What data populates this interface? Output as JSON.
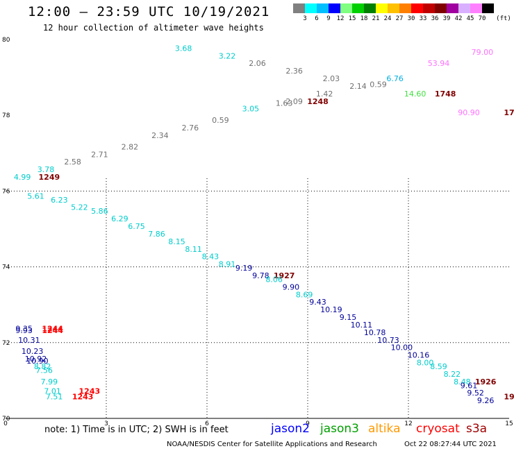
{
  "header": {
    "title": "12:00 – 23:59 UTC 10/19/2021",
    "subtitle": "12 hour collection of altimeter wave heights"
  },
  "colorbar": {
    "unit": "(ft)",
    "labels": [
      "3",
      "6",
      "9",
      "12",
      "15",
      "18",
      "21",
      "24",
      "27",
      "30",
      "33",
      "36",
      "39",
      "42",
      "45",
      "70"
    ],
    "colors": [
      "#808080",
      "#00ffff",
      "#00bfff",
      "#0000ff",
      "#80ff80",
      "#00d000",
      "#008000",
      "#ffff00",
      "#ffc000",
      "#ff8000",
      "#ff0000",
      "#c00000",
      "#800000",
      "#a000a0",
      "#d8b0ff",
      "#ff80ff",
      "#000000"
    ]
  },
  "chart_data": {
    "type": "scatter",
    "x_axis": {
      "ticks": [
        "0",
        "3",
        "6",
        "9",
        "12",
        "15"
      ],
      "range": [
        0,
        15
      ]
    },
    "y_axis": {
      "ticks": [
        "70",
        "72",
        "74",
        "76",
        "78",
        "80"
      ],
      "range": [
        70,
        80
      ]
    },
    "grid": true,
    "points": [
      {
        "x": 5.3,
        "y": 79.7,
        "label": "3.68",
        "color": "#00cccc"
      },
      {
        "x": 6.6,
        "y": 79.5,
        "label": "3.22",
        "color": "#00cccc"
      },
      {
        "x": 7.5,
        "y": 79.3,
        "label": "2.06",
        "color": "#707070"
      },
      {
        "x": 8.6,
        "y": 79.1,
        "label": "2.36",
        "color": "#707070"
      },
      {
        "x": 9.7,
        "y": 78.9,
        "label": "2.03",
        "color": "#707070"
      },
      {
        "x": 10.5,
        "y": 78.7,
        "label": "2.14",
        "color": "#707070"
      },
      {
        "x": 11.1,
        "y": 78.75,
        "label": "0.59",
        "color": "#707070"
      },
      {
        "x": 11.6,
        "y": 78.9,
        "label": "6.76",
        "color": "#00b0e0"
      },
      {
        "x": 12.9,
        "y": 79.3,
        "label": "53.94",
        "color": "#ff70ff"
      },
      {
        "x": 14.2,
        "y": 79.6,
        "label": "79.00",
        "color": "#ff70ff"
      },
      {
        "x": 9.5,
        "y": 78.5,
        "label": "1.42",
        "color": "#707070"
      },
      {
        "x": 8.6,
        "y": 78.3,
        "label": "2.09",
        "color": "#707070"
      },
      {
        "x": 8.3,
        "y": 78.25,
        "label": "1.63",
        "color": "#707070"
      },
      {
        "x": 12.2,
        "y": 78.5,
        "label": "14.60",
        "color": "#40e040"
      },
      {
        "x": 9.3,
        "y": 78.3,
        "label": "1248",
        "color": "#800000",
        "bold": true
      },
      {
        "x": 13.1,
        "y": 78.5,
        "label": "1748",
        "color": "#800000",
        "bold": true
      },
      {
        "x": 13.8,
        "y": 78.0,
        "label": "90.90",
        "color": "#ff70ff"
      },
      {
        "x": 15.0,
        "y": 78.0,
        "label": "17",
        "color": "#800000",
        "bold": true
      },
      {
        "x": 7.3,
        "y": 78.1,
        "label": "3.05",
        "color": "#00cccc"
      },
      {
        "x": 6.4,
        "y": 77.8,
        "label": "0.59",
        "color": "#707070"
      },
      {
        "x": 5.5,
        "y": 77.6,
        "label": "2.76",
        "color": "#707070"
      },
      {
        "x": 4.6,
        "y": 77.4,
        "label": "2.34",
        "color": "#707070"
      },
      {
        "x": 3.7,
        "y": 77.1,
        "label": "2.82",
        "color": "#707070"
      },
      {
        "x": 2.8,
        "y": 76.9,
        "label": "2.71",
        "color": "#707070"
      },
      {
        "x": 2.0,
        "y": 76.7,
        "label": "2.58",
        "color": "#707070"
      },
      {
        "x": 1.2,
        "y": 76.5,
        "label": "3.78",
        "color": "#00cccc"
      },
      {
        "x": 0.5,
        "y": 76.3,
        "label": "4.99",
        "color": "#00cccc"
      },
      {
        "x": 1.3,
        "y": 76.3,
        "label": "1249",
        "color": "#800000",
        "bold": true
      },
      {
        "x": 0.9,
        "y": 75.8,
        "label": "5.61",
        "color": "#00cccc"
      },
      {
        "x": 1.6,
        "y": 75.7,
        "label": "6.23",
        "color": "#00cccc"
      },
      {
        "x": 2.2,
        "y": 75.5,
        "label": "5.22",
        "color": "#00cccc"
      },
      {
        "x": 2.8,
        "y": 75.4,
        "label": "5.86",
        "color": "#00cccc"
      },
      {
        "x": 3.4,
        "y": 75.2,
        "label": "6.29",
        "color": "#00cccc"
      },
      {
        "x": 3.9,
        "y": 75.0,
        "label": "6.75",
        "color": "#00cccc"
      },
      {
        "x": 4.5,
        "y": 74.8,
        "label": "7.86",
        "color": "#00cccc"
      },
      {
        "x": 5.1,
        "y": 74.6,
        "label": "8.15",
        "color": "#00cccc"
      },
      {
        "x": 5.6,
        "y": 74.4,
        "label": "8.11",
        "color": "#00cccc"
      },
      {
        "x": 6.1,
        "y": 74.2,
        "label": "8.43",
        "color": "#00cccc"
      },
      {
        "x": 6.6,
        "y": 74.0,
        "label": "8.91",
        "color": "#00cccc"
      },
      {
        "x": 7.1,
        "y": 73.9,
        "label": "9.19",
        "color": "#000099"
      },
      {
        "x": 7.6,
        "y": 73.7,
        "label": "9.78",
        "color": "#000099"
      },
      {
        "x": 8.3,
        "y": 73.7,
        "label": "1927",
        "color": "#800000",
        "bold": true
      },
      {
        "x": 8.0,
        "y": 73.6,
        "label": "8.06",
        "color": "#00cccc"
      },
      {
        "x": 8.5,
        "y": 73.4,
        "label": "9.90",
        "color": "#000099"
      },
      {
        "x": 8.9,
        "y": 73.2,
        "label": "8.69",
        "color": "#00cccc"
      },
      {
        "x": 9.3,
        "y": 73.0,
        "label": "9.43",
        "color": "#000099"
      },
      {
        "x": 9.7,
        "y": 72.8,
        "label": "10.19",
        "color": "#000099"
      },
      {
        "x": 10.2,
        "y": 72.6,
        "label": "9.15",
        "color": "#000099"
      },
      {
        "x": 10.6,
        "y": 72.4,
        "label": "10.11",
        "color": "#000099"
      },
      {
        "x": 11.0,
        "y": 72.2,
        "label": "10.78",
        "color": "#000099"
      },
      {
        "x": 11.4,
        "y": 72.0,
        "label": "10.73",
        "color": "#000099"
      },
      {
        "x": 11.8,
        "y": 71.8,
        "label": "10.00",
        "color": "#000099"
      },
      {
        "x": 12.3,
        "y": 71.6,
        "label": "10.16",
        "color": "#000099"
      },
      {
        "x": 12.5,
        "y": 71.4,
        "label": "8.00",
        "color": "#00cccc"
      },
      {
        "x": 12.9,
        "y": 71.3,
        "label": "8.59",
        "color": "#00cccc"
      },
      {
        "x": 13.3,
        "y": 71.1,
        "label": "8.22",
        "color": "#00cccc"
      },
      {
        "x": 13.6,
        "y": 70.9,
        "label": "8.48",
        "color": "#00cccc"
      },
      {
        "x": 14.3,
        "y": 70.9,
        "label": "1926",
        "color": "#800000",
        "bold": true
      },
      {
        "x": 13.8,
        "y": 70.8,
        "label": "9.61",
        "color": "#000099"
      },
      {
        "x": 14.0,
        "y": 70.6,
        "label": "9.52",
        "color": "#000099"
      },
      {
        "x": 14.3,
        "y": 70.4,
        "label": "9.26",
        "color": "#000099"
      },
      {
        "x": 15.0,
        "y": 70.5,
        "label": "19",
        "color": "#800000",
        "bold": true
      },
      {
        "x": 0.55,
        "y": 72.3,
        "label": "9.35",
        "color": "#000099"
      },
      {
        "x": 0.55,
        "y": 72.25,
        "label": "9.93",
        "color": "#000099"
      },
      {
        "x": 1.4,
        "y": 72.3,
        "label": "1244",
        "color": "#ff0000",
        "bold": true
      },
      {
        "x": 1.4,
        "y": 72.25,
        "label": "1244",
        "color": "#ff0000",
        "bold": true
      },
      {
        "x": 0.7,
        "y": 72.0,
        "label": "10.31",
        "color": "#000099"
      },
      {
        "x": 0.8,
        "y": 71.7,
        "label": "10.23",
        "color": "#000099"
      },
      {
        "x": 0.9,
        "y": 71.5,
        "label": "10.92",
        "color": "#000099"
      },
      {
        "x": 0.95,
        "y": 71.45,
        "label": "10.90",
        "color": "#000099"
      },
      {
        "x": 1.1,
        "y": 71.3,
        "label": "8.82",
        "color": "#00cccc"
      },
      {
        "x": 1.15,
        "y": 71.2,
        "label": "7.56",
        "color": "#00cccc"
      },
      {
        "x": 1.3,
        "y": 70.9,
        "label": "7.99",
        "color": "#00cccc"
      },
      {
        "x": 1.4,
        "y": 70.65,
        "label": "7.01",
        "color": "#00cccc"
      },
      {
        "x": 1.45,
        "y": 70.5,
        "label": "7.51",
        "color": "#00cccc"
      },
      {
        "x": 2.5,
        "y": 70.65,
        "label": "1243",
        "color": "#ff0000",
        "bold": true
      },
      {
        "x": 2.3,
        "y": 70.5,
        "label": "1243",
        "color": "#ff0000",
        "bold": true
      }
    ]
  },
  "footer": {
    "note": "note:  1) Time is in UTC;  2) SWH is in feet",
    "satellites": [
      {
        "name": "jason2",
        "color": "#0000ff"
      },
      {
        "name": "jason3",
        "color": "#00a000"
      },
      {
        "name": "altika",
        "color": "#ff9900"
      },
      {
        "name": "cryosat",
        "color": "#ff0000"
      },
      {
        "name": "s3a",
        "color": "#a00000"
      }
    ],
    "credit": "NOAA/NESDIS Center for Satellite Applications and Research",
    "timestamp": "Oct 22 08:27:44 UTC 2021"
  }
}
